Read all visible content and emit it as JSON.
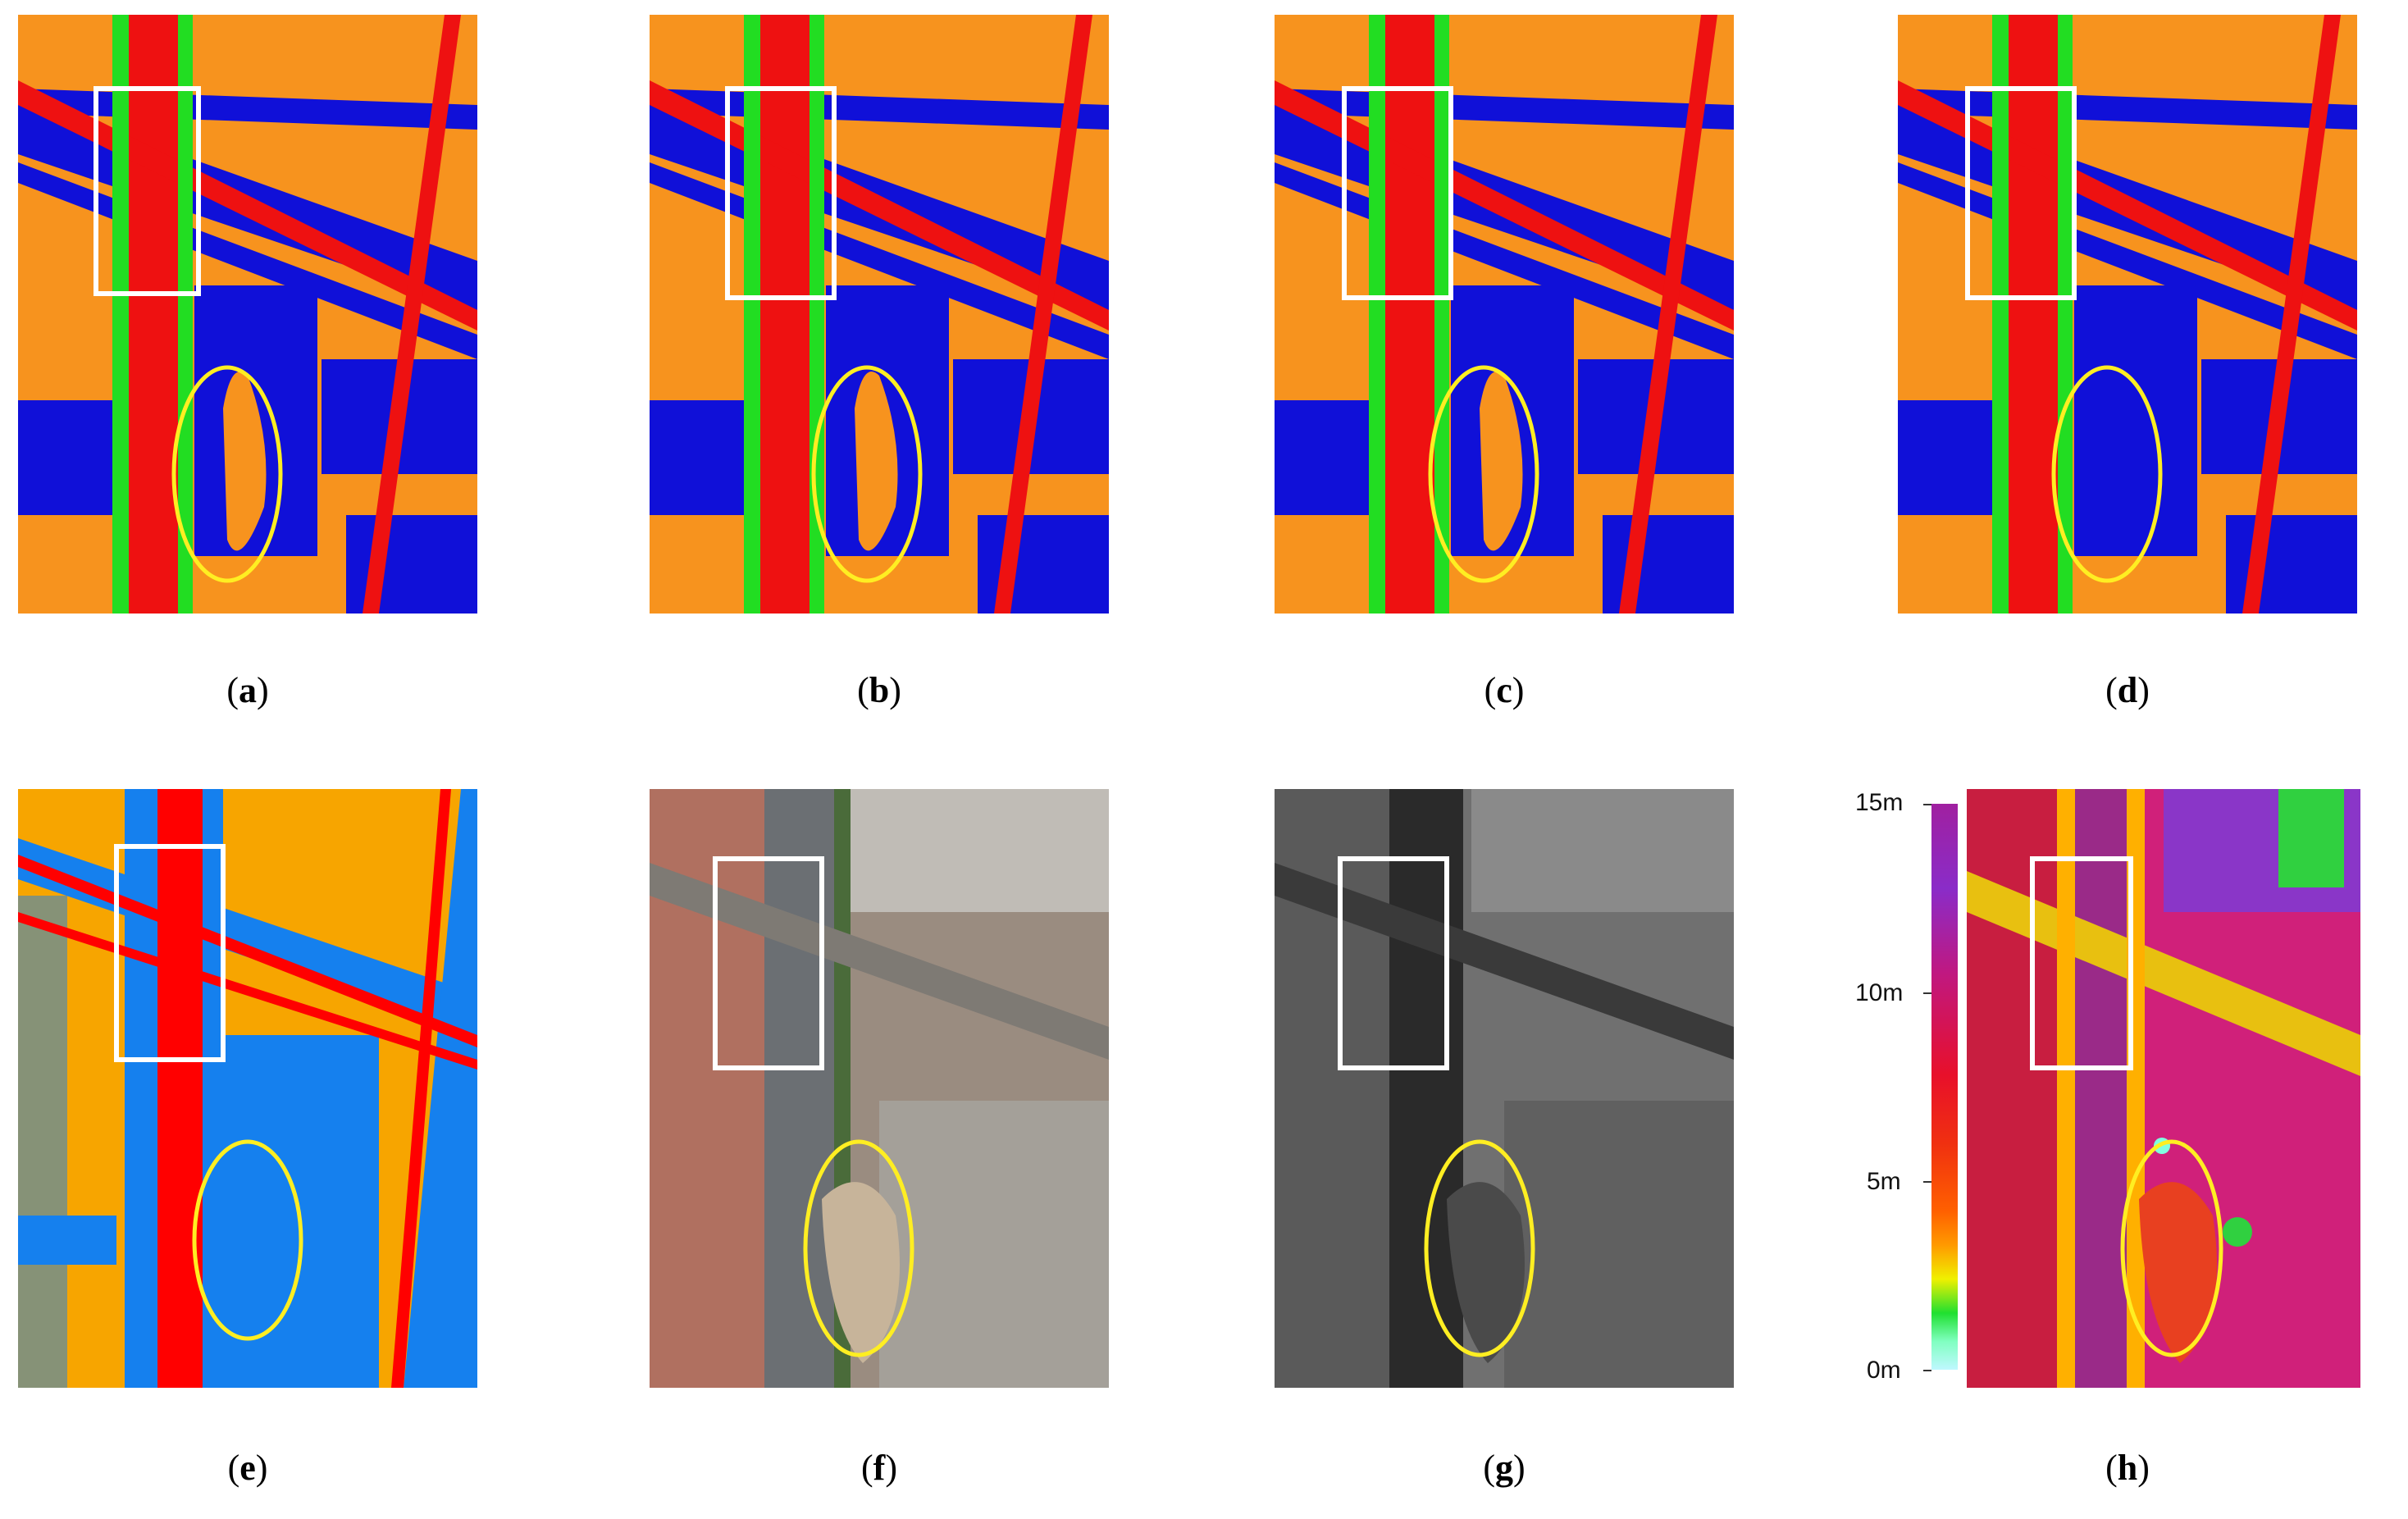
{
  "panels": [
    {
      "id": "a",
      "caption_letter": "a",
      "type": "classification"
    },
    {
      "id": "b",
      "caption_letter": "b",
      "type": "classification"
    },
    {
      "id": "c",
      "caption_letter": "c",
      "type": "classification"
    },
    {
      "id": "d",
      "caption_letter": "d",
      "type": "classification"
    },
    {
      "id": "e",
      "caption_letter": "e",
      "type": "ground-truth"
    },
    {
      "id": "f",
      "caption_letter": "f",
      "type": "rgb-aerial"
    },
    {
      "id": "g",
      "caption_letter": "g",
      "type": "grayscale"
    },
    {
      "id": "h",
      "caption_letter": "h",
      "type": "height-map"
    }
  ],
  "height_scale": {
    "labels": [
      "15m",
      "10m",
      "5m",
      "0m"
    ]
  },
  "colors": {
    "orange": "#f7931e",
    "blue": "#1010d8",
    "red": "#ee1111",
    "green": "#22dd22",
    "gt_orange": "#f7a500",
    "gt_blue": "#1580ee",
    "gt_red": "#ff0000",
    "white_box": "#ffffff",
    "yellow_ellipse": "#ffee22"
  }
}
